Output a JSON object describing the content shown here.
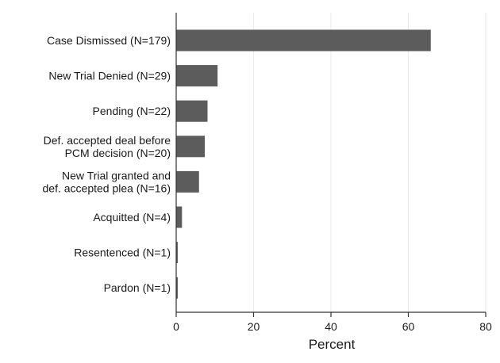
{
  "chart_data": {
    "type": "bar",
    "orientation": "horizontal",
    "categories": [
      [
        "Case Dismissed (N=179)"
      ],
      [
        "New Trial Denied (N=29)"
      ],
      [
        "Pending (N=22)"
      ],
      [
        "Def. accepted deal before",
        "PCM decision (N=20)"
      ],
      [
        "New Trial granted and",
        "def. accepted plea (N=16)"
      ],
      [
        "Acquitted (N=4)"
      ],
      [
        "Resentenced (N=1)"
      ],
      [
        "Pardon (N=1)"
      ]
    ],
    "values": [
      65.8,
      10.7,
      8.1,
      7.4,
      5.9,
      1.5,
      0.4,
      0.4
    ],
    "xlabel": "Percent",
    "xlim": [
      0,
      80
    ],
    "xticks": [
      0,
      20,
      40,
      60,
      80
    ],
    "grid": true,
    "legend": "none",
    "bar_color": "#5c5c5c",
    "grid_color": "#eaeaea",
    "axis_color": "#333333"
  }
}
